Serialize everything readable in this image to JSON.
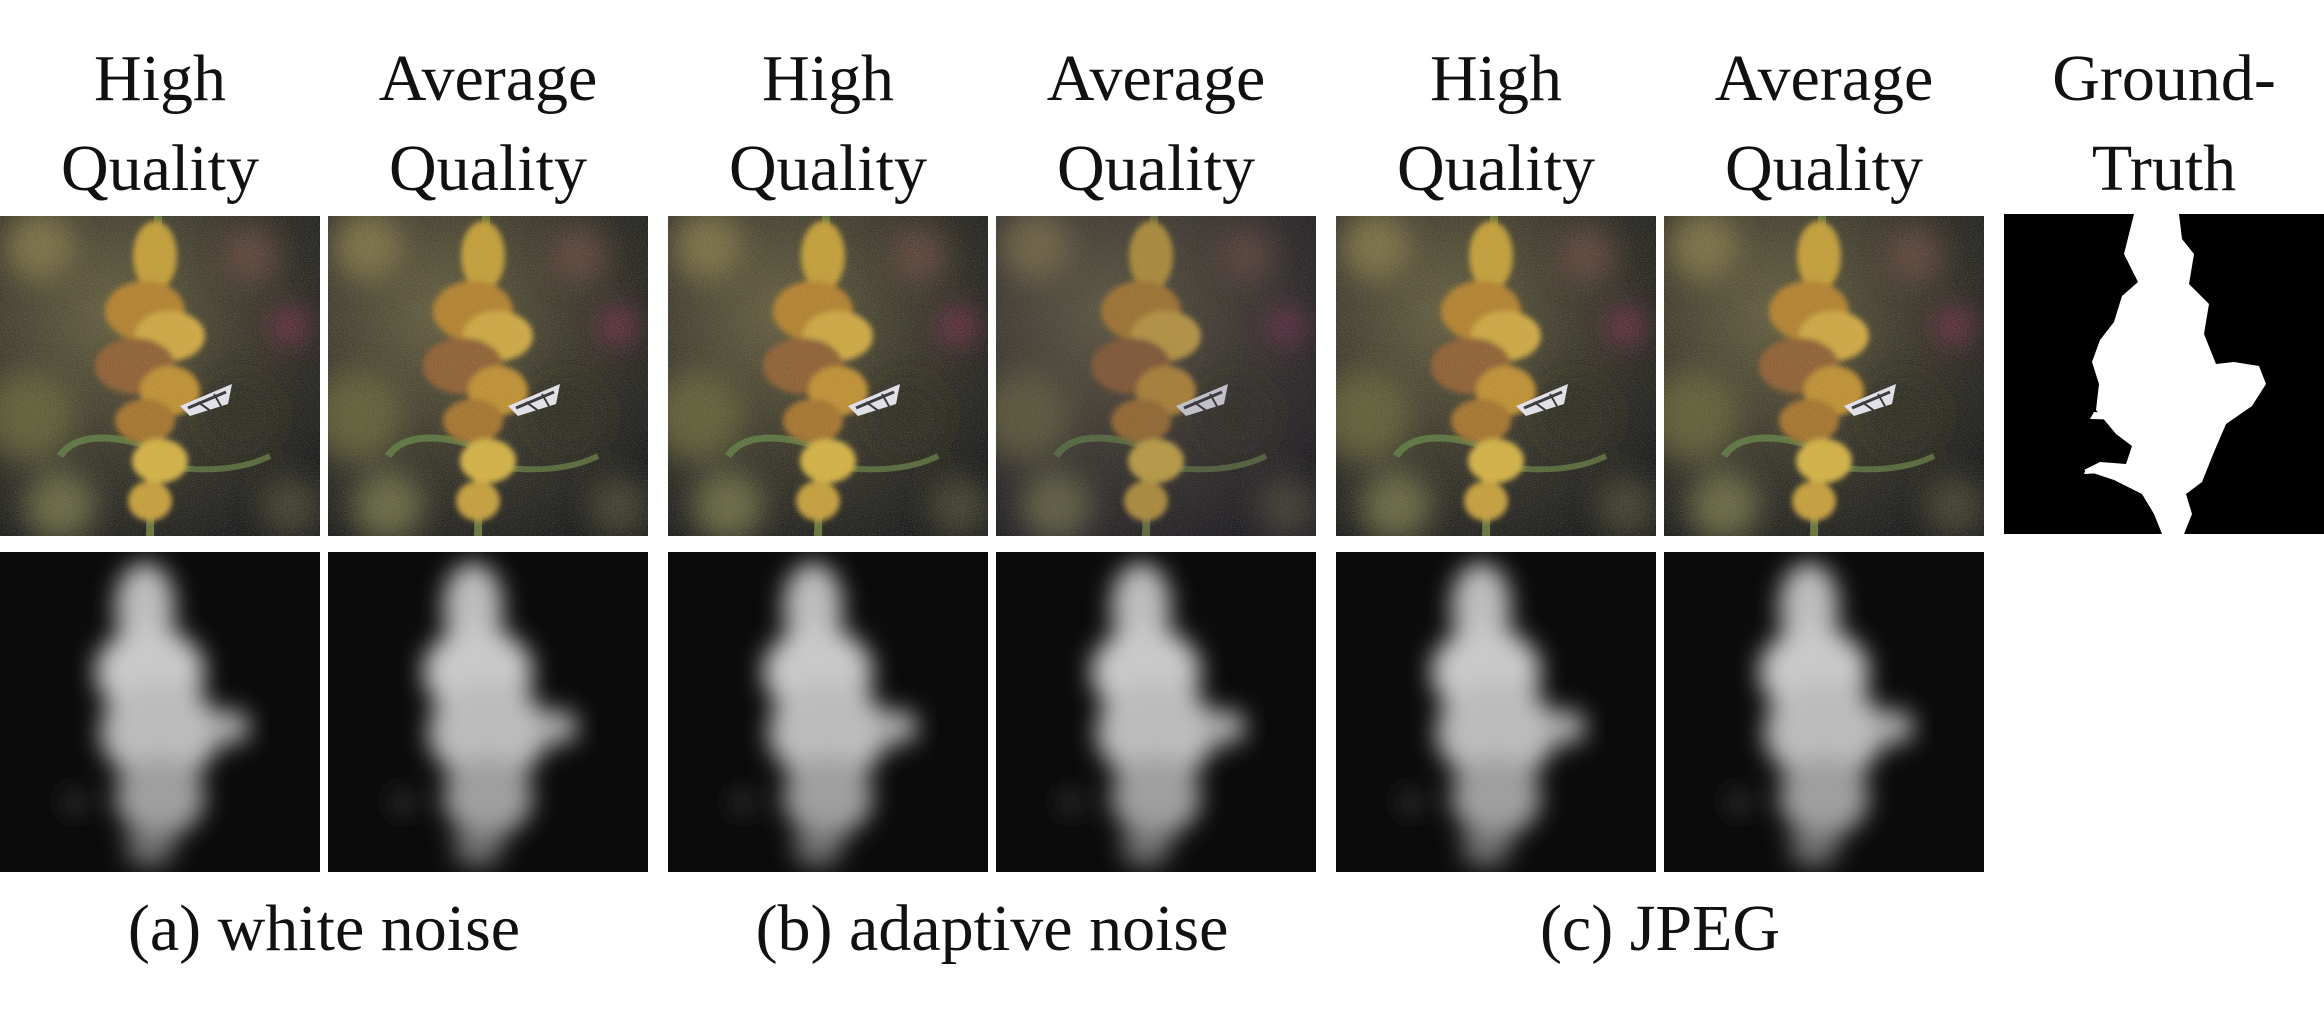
{
  "figure": {
    "columns": [
      {
        "line1": "High",
        "line2": "Quality"
      },
      {
        "line1": "Average",
        "line2": "Quality"
      },
      {
        "line1": "High",
        "line2": "Quality"
      },
      {
        "line1": "Average",
        "line2": "Quality"
      },
      {
        "line1": "High",
        "line2": "Quality"
      },
      {
        "line1": "Average",
        "line2": "Quality"
      },
      {
        "line1": "Ground-",
        "line2": "Truth"
      }
    ],
    "captions": {
      "a": "(a) white noise",
      "b": "(b) adaptive noise",
      "c": "(c) JPEG"
    }
  }
}
